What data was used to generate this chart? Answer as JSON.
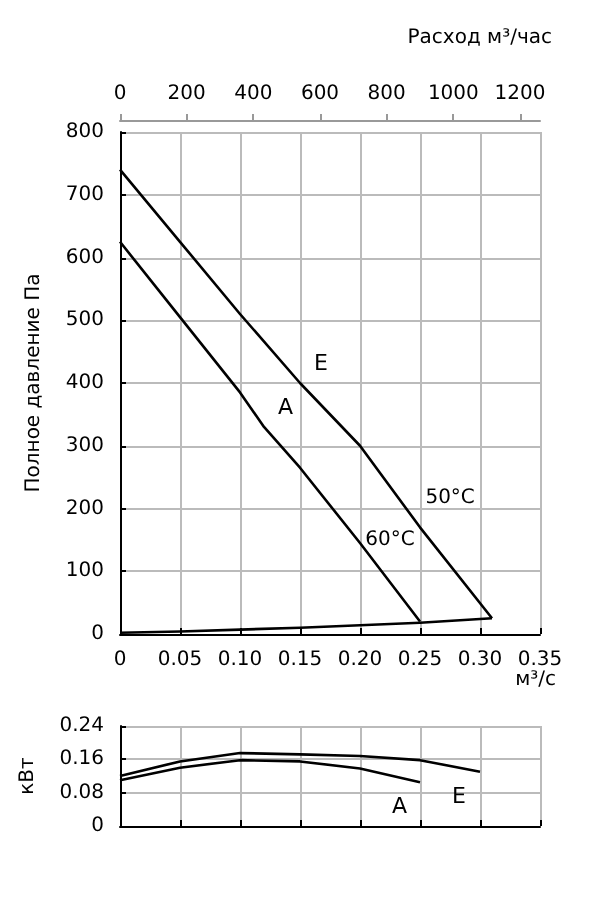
{
  "chart_data": [
    {
      "type": "line",
      "xlabel": "м³/с",
      "ylabel": "Полное давление Па",
      "x2label": "Расход м³/час",
      "xlim": [
        0,
        0.35
      ],
      "xticks": [
        0,
        0.05,
        {
          "value": 0.1,
          "label": "0.10"
        },
        0.15,
        {
          "value": 0.2,
          "label": "0.20"
        },
        0.25,
        {
          "value": 0.3,
          "label": "0.30"
        },
        0.35
      ],
      "x2lim": [
        0,
        1260
      ],
      "x2ticks": [
        0,
        200,
        400,
        600,
        800,
        1000,
        1200
      ],
      "ylim": [
        0,
        800
      ],
      "yticks": [
        0,
        100,
        200,
        300,
        400,
        500,
        600,
        700,
        800
      ],
      "grid": true,
      "marker": "none",
      "series": [
        {
          "name": "E",
          "color": "#000000",
          "x": [
            0,
            0.05,
            0.1,
            0.15,
            0.2,
            0.25,
            0.31
          ],
          "values": [
            740,
            625,
            510,
            400,
            300,
            170,
            25
          ]
        },
        {
          "name": "A",
          "color": "#000000",
          "x": [
            0,
            0.05,
            0.1,
            0.12,
            0.15,
            0.2,
            0.25
          ],
          "values": [
            625,
            505,
            385,
            330,
            265,
            145,
            20
          ]
        },
        {
          "color": "#000000",
          "x": [
            0,
            0.05,
            0.1,
            0.15,
            0.2,
            0.25,
            0.31
          ],
          "values": [
            2,
            4,
            7,
            10,
            14,
            18,
            25
          ]
        }
      ],
      "annotations": [
        "50°C",
        "60°C"
      ]
    },
    {
      "type": "line",
      "ylabel": "кВт",
      "xlim": [
        0,
        0.35
      ],
      "ylim": [
        0,
        0.24
      ],
      "yticks": [
        0,
        0.08,
        0.16,
        0.24
      ],
      "tick_labels": "y",
      "grid": true,
      "marker": "none",
      "xticks": [
        0,
        0.05,
        0.1,
        0.15,
        0.2,
        0.25,
        0.3,
        0.35
      ],
      "series": [
        {
          "name": "E",
          "color": "#000000",
          "x": [
            0,
            0.05,
            0.1,
            0.15,
            0.2,
            0.25,
            0.3
          ],
          "values": [
            0.12,
            0.155,
            0.175,
            0.172,
            0.168,
            0.158,
            0.13
          ]
        },
        {
          "name": "A",
          "color": "#000000",
          "x": [
            0,
            0.05,
            0.1,
            0.15,
            0.2,
            0.25
          ],
          "values": [
            0.11,
            0.14,
            0.158,
            0.155,
            0.138,
            0.105
          ]
        }
      ]
    }
  ]
}
